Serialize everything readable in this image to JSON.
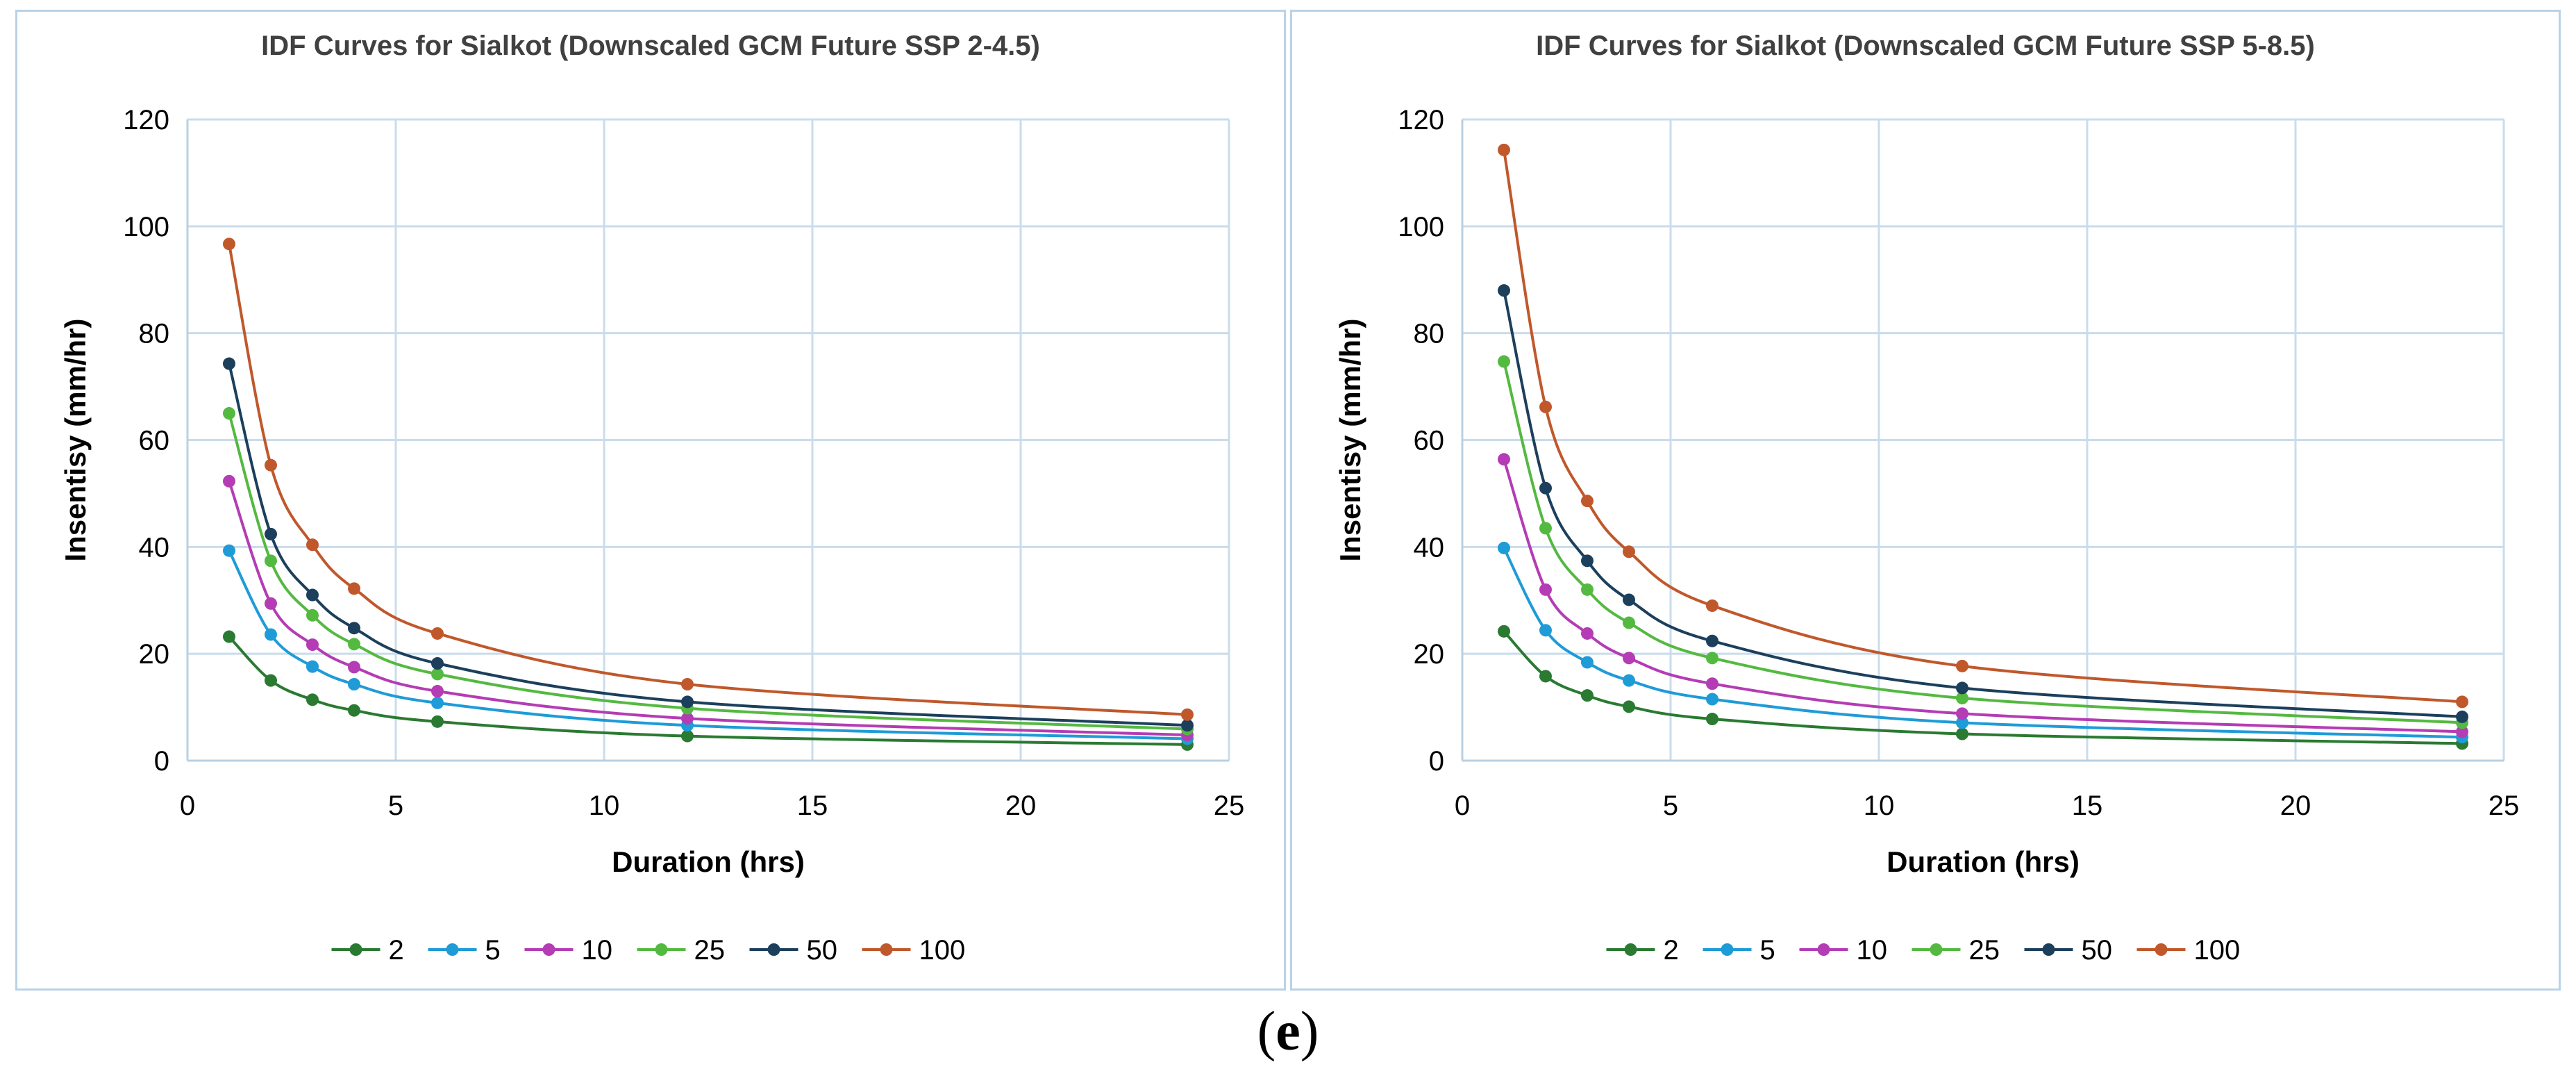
{
  "caption": {
    "open": "(",
    "letter": "e",
    "close": ")"
  },
  "chart_data": [
    {
      "type": "line",
      "title": "IDF Curves for Sialkot (Downscaled GCM Future SSP 2-4.5)",
      "xlabel": "Duration (hrs)",
      "ylabel": "Insentisy (mm/hr)",
      "xlim": [
        0,
        25
      ],
      "ylim": [
        0,
        120
      ],
      "xticks": [
        0,
        5,
        10,
        15,
        20,
        25
      ],
      "yticks": [
        0,
        20,
        40,
        60,
        80,
        100,
        120
      ],
      "grid": true,
      "legend_position": "bottom",
      "x": [
        1,
        2,
        3,
        4,
        6,
        12,
        24
      ],
      "series": [
        {
          "name": "2",
          "color": "#2a7a32",
          "values": [
            23.2,
            15.0,
            11.4,
            9.4,
            7.3,
            4.6,
            3.0
          ]
        },
        {
          "name": "5",
          "color": "#1f9bd7",
          "values": [
            39.3,
            23.6,
            17.6,
            14.3,
            10.8,
            6.6,
            4.1
          ]
        },
        {
          "name": "10",
          "color": "#b43cb4",
          "values": [
            52.3,
            29.4,
            21.7,
            17.5,
            13.0,
            7.9,
            4.8
          ]
        },
        {
          "name": "25",
          "color": "#54b941",
          "values": [
            65.0,
            37.4,
            27.2,
            21.8,
            16.2,
            9.8,
            5.9
          ]
        },
        {
          "name": "50",
          "color": "#1c3f5c",
          "values": [
            74.3,
            42.4,
            31.0,
            24.8,
            18.2,
            11.0,
            6.6
          ]
        },
        {
          "name": "100",
          "color": "#c0582b",
          "values": [
            96.7,
            55.3,
            40.4,
            32.2,
            23.8,
            14.3,
            8.6
          ]
        }
      ]
    },
    {
      "type": "line",
      "title": "IDF Curves for Sialkot (Downscaled GCM Future SSP 5-8.5)",
      "xlabel": "Duration (hrs)",
      "ylabel": "Insentisy (mm/hr)",
      "xlim": [
        0,
        25
      ],
      "ylim": [
        0,
        120
      ],
      "xticks": [
        0,
        5,
        10,
        15,
        20,
        25
      ],
      "yticks": [
        0,
        20,
        40,
        60,
        80,
        100,
        120
      ],
      "grid": true,
      "legend_position": "bottom",
      "x": [
        1,
        2,
        3,
        4,
        6,
        12,
        24
      ],
      "series": [
        {
          "name": "2",
          "color": "#2a7a32",
          "values": [
            24.2,
            15.8,
            12.2,
            10.1,
            7.8,
            5.0,
            3.2
          ]
        },
        {
          "name": "5",
          "color": "#1f9bd7",
          "values": [
            39.8,
            24.4,
            18.4,
            15.0,
            11.5,
            7.1,
            4.4
          ]
        },
        {
          "name": "10",
          "color": "#b43cb4",
          "values": [
            56.4,
            32.0,
            23.8,
            19.2,
            14.4,
            8.8,
            5.4
          ]
        },
        {
          "name": "25",
          "color": "#54b941",
          "values": [
            74.7,
            43.5,
            32.0,
            25.8,
            19.2,
            11.7,
            7.1
          ]
        },
        {
          "name": "50",
          "color": "#1c3f5c",
          "values": [
            88.0,
            51.0,
            37.4,
            30.1,
            22.4,
            13.6,
            8.2
          ]
        },
        {
          "name": "100",
          "color": "#c0582b",
          "values": [
            114.3,
            66.2,
            48.6,
            39.1,
            29.0,
            17.7,
            11.0
          ]
        }
      ]
    }
  ]
}
